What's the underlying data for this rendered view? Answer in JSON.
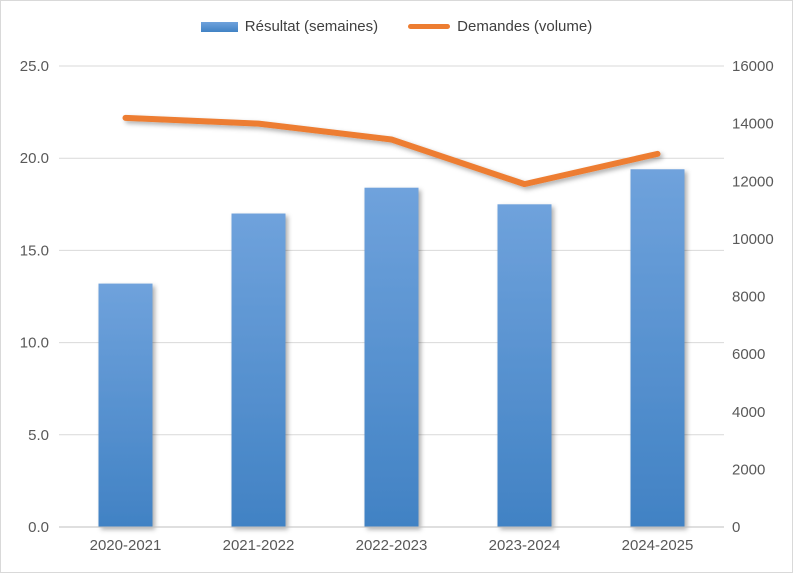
{
  "colors": {
    "bar_fill_top": "#6FA2DC",
    "bar_fill_bottom": "#4182C4",
    "bar_legend": "#5B9BD5",
    "line": "#ED7D31",
    "gridline": "#D9D9D9",
    "axis_line": "#BFBFBF",
    "tick_text": "#595959",
    "legend_text": "#404040",
    "background": "#FFFFFF",
    "border": "#D9D9D9"
  },
  "legend": {
    "position": "top",
    "items": [
      {
        "label": "Résultat (semaines)",
        "swatch": "bar-swatch",
        "color": "#5B9BD5"
      },
      {
        "label": "Demandes (volume)",
        "swatch": "line-swatch",
        "color": "#ED7D31"
      }
    ]
  },
  "chart_data": {
    "type": "combo",
    "categories": [
      "2020-2021",
      "2021-2022",
      "2022-2023",
      "2023-2024",
      "2024-2025"
    ],
    "series": [
      {
        "name": "Résultat (semaines)",
        "type": "bar",
        "axis": "left",
        "color": "#5B9BD5",
        "values": [
          13.2,
          17.0,
          18.4,
          17.5,
          19.4
        ]
      },
      {
        "name": "Demandes (volume)",
        "type": "line",
        "axis": "right",
        "color": "#ED7D31",
        "values": [
          14200,
          14000,
          13450,
          11900,
          12950
        ]
      }
    ],
    "left_axis": {
      "min": 0,
      "max": 25,
      "tick_step": 5,
      "tick_labels": [
        "0.0",
        "5.0",
        "10.0",
        "15.0",
        "20.0",
        "25.0"
      ]
    },
    "right_axis": {
      "min": 0,
      "max": 16000,
      "tick_step": 2000,
      "tick_labels": [
        "0",
        "2000",
        "4000",
        "6000",
        "8000",
        "10000",
        "12000",
        "14000",
        "16000"
      ]
    },
    "grid": true,
    "legend_position": "top"
  }
}
